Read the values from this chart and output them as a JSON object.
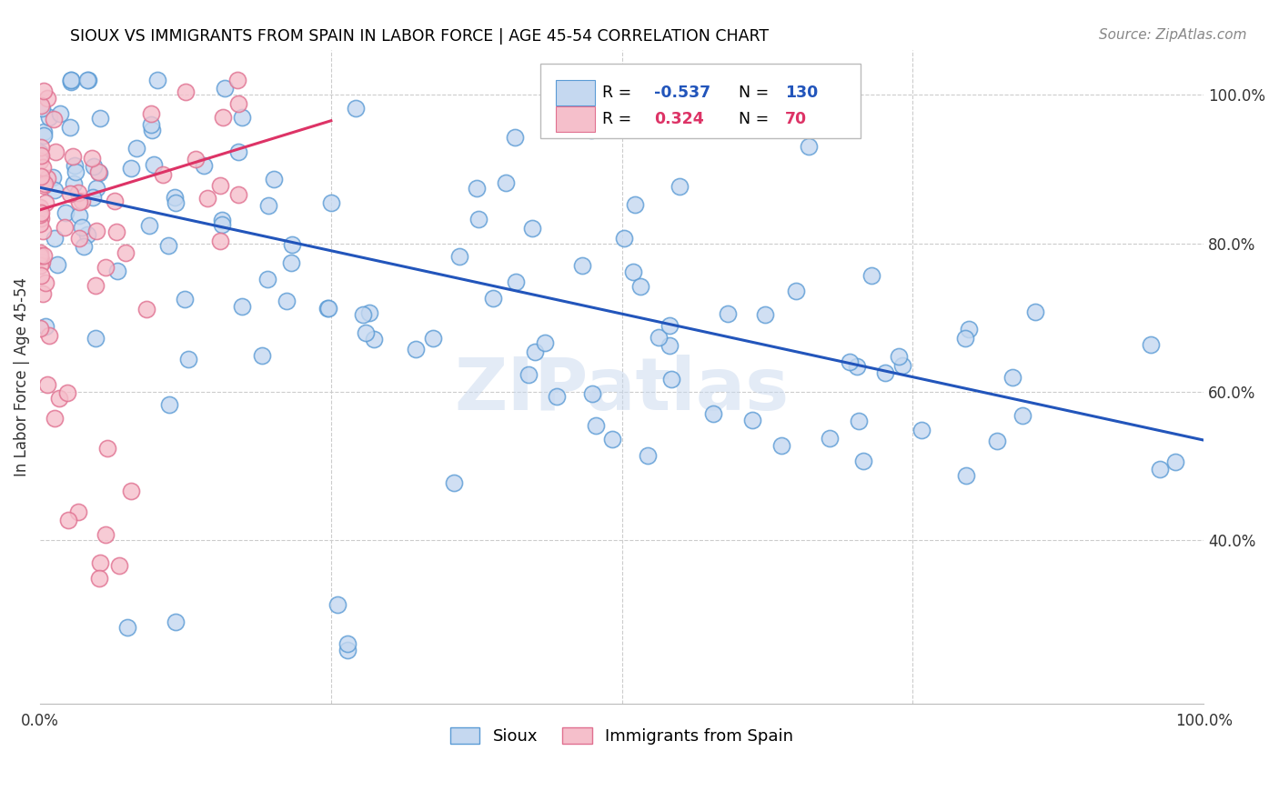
{
  "title": "SIOUX VS IMMIGRANTS FROM SPAIN IN LABOR FORCE | AGE 45-54 CORRELATION CHART",
  "source": "Source: ZipAtlas.com",
  "ylabel": "In Labor Force | Age 45-54",
  "xlim": [
    0.0,
    1.0
  ],
  "ylim": [
    0.18,
    1.06
  ],
  "x_tick_labels": [
    "0.0%",
    "",
    "",
    "",
    "100.0%"
  ],
  "y_tick_labels_right": [
    "100.0%",
    "80.0%",
    "60.0%",
    "40.0%"
  ],
  "y_tick_vals": [
    1.0,
    0.8,
    0.6,
    0.4
  ],
  "sioux_color": "#c5d8f0",
  "spain_color": "#f5bfcb",
  "sioux_edge": "#5b9bd5",
  "spain_edge": "#e07090",
  "trend_blue": "#2255bb",
  "trend_pink": "#dd3366",
  "watermark": "ZIPatlas",
  "legend_r1_label": "R = ",
  "legend_r1_val": "-0.537",
  "legend_n1_label": "N = ",
  "legend_n1_val": "130",
  "legend_r2_label": "R =  ",
  "legend_r2_val": "0.324",
  "legend_n2_label": "N =  ",
  "legend_n2_val": "70",
  "blue_trend_x0": 0.0,
  "blue_trend_y0": 0.875,
  "blue_trend_x1": 1.0,
  "blue_trend_y1": 0.535,
  "pink_trend_x0": 0.0,
  "pink_trend_y0": 0.845,
  "pink_trend_x1": 0.25,
  "pink_trend_y1": 0.965
}
